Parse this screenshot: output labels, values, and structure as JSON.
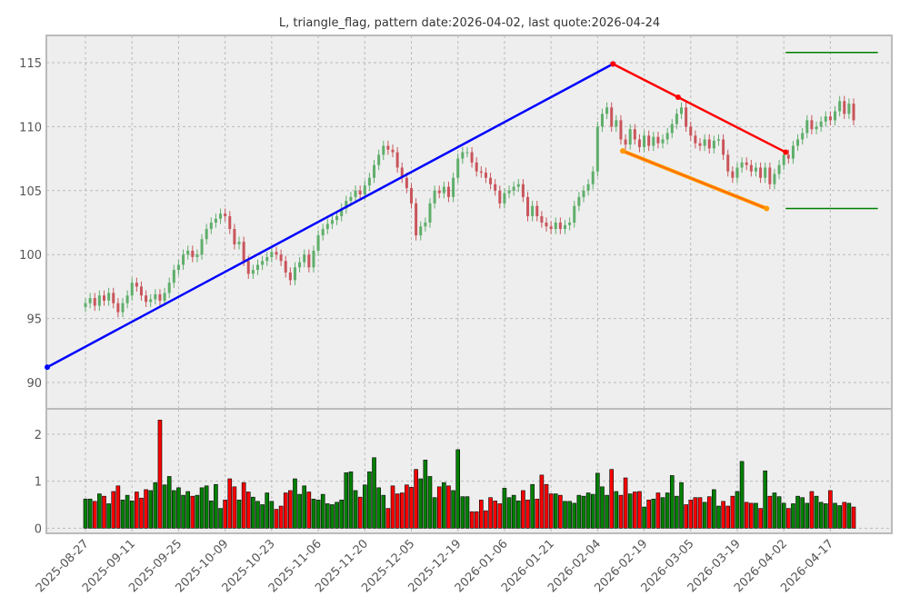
{
  "chart_data": {
    "type": "candlestick",
    "title": "L, triangle_flag, pattern date:2026-04-02, last quote:2026-04-24",
    "xlabel": "",
    "ylabel": "",
    "price_ylim": [
      87.94,
      117.13
    ],
    "volume_ylim": [
      -0.11,
      2.54
    ],
    "x_index_range": [
      -8.4,
      173.2
    ],
    "price_yticks": [
      90,
      95,
      100,
      105,
      110,
      115
    ],
    "volume_yticks": [
      0,
      1,
      2
    ],
    "xtick_labels": [
      "2025-08-27",
      "2025-09-11",
      "2025-09-25",
      "2025-10-09",
      "2025-10-23",
      "2025-11-06",
      "2025-11-20",
      "2025-12-05",
      "2025-12-19",
      "2026-01-06",
      "2026-01-21",
      "2026-02-04",
      "2026-02-19",
      "2026-03-05",
      "2026-03-19",
      "2026-04-02",
      "2026-04-17"
    ],
    "xtick_index_step": 10,
    "grid": true,
    "close": [
      96.2,
      96.6,
      96.0,
      96.8,
      96.4,
      97.0,
      96.2,
      95.5,
      96.2,
      96.8,
      97.8,
      97.5,
      96.8,
      96.3,
      96.5,
      96.9,
      96.4,
      97.0,
      97.8,
      98.8,
      99.2,
      100.0,
      100.3,
      99.8,
      100.0,
      101.2,
      102.0,
      102.5,
      102.8,
      103.2,
      103.0,
      102.0,
      100.8,
      101.0,
      99.5,
      98.5,
      98.8,
      99.2,
      99.5,
      99.8,
      100.2,
      100.0,
      99.5,
      98.6,
      98.0,
      99.0,
      99.4,
      100.0,
      99.0,
      100.3,
      101.5,
      102.0,
      102.4,
      102.7,
      103.0,
      103.6,
      104.2,
      104.5,
      105.0,
      104.7,
      105.4,
      106.0,
      107.0,
      107.8,
      108.5,
      108.2,
      108.0,
      106.8,
      106.0,
      105.2,
      104.0,
      101.5,
      102.2,
      102.5,
      104.0,
      105.0,
      104.8,
      105.3,
      104.5,
      106.0,
      107.5,
      108.0,
      108.0,
      107.2,
      106.5,
      106.4,
      106.0,
      105.5,
      105.0,
      104.0,
      104.8,
      105.0,
      105.3,
      105.5,
      104.5,
      103.0,
      103.8,
      103.0,
      102.5,
      102.2,
      102.0,
      102.5,
      102.0,
      102.3,
      102.5,
      103.8,
      104.5,
      105.0,
      105.5,
      106.5,
      110.0,
      111.0,
      111.5,
      110.0,
      110.5,
      109.0,
      108.6,
      109.8,
      109.0,
      108.4,
      109.3,
      108.5,
      109.2,
      108.7,
      109.0,
      109.5,
      110.2,
      111.0,
      111.5,
      110.0,
      109.3,
      108.7,
      108.5,
      109.0,
      108.3,
      108.9,
      109.0,
      107.8,
      106.5,
      106.0,
      106.8,
      107.2,
      107.0,
      106.5,
      106.8,
      106.0,
      106.8,
      105.5,
      106.3,
      107.0,
      107.8,
      107.5,
      108.5,
      109.0,
      109.5,
      110.5,
      109.8,
      110.0,
      110.4,
      110.8,
      110.5,
      111.2,
      112.0,
      111.0,
      111.8,
      110.5
    ],
    "volume": [
      0.62,
      0.62,
      0.57,
      0.73,
      0.68,
      0.52,
      0.78,
      0.9,
      0.6,
      0.7,
      0.58,
      0.77,
      0.64,
      0.82,
      0.8,
      0.97,
      2.3,
      0.92,
      1.1,
      0.8,
      0.86,
      0.7,
      0.78,
      0.68,
      0.7,
      0.86,
      0.9,
      0.58,
      0.93,
      0.42,
      0.6,
      1.05,
      0.88,
      0.6,
      0.97,
      0.77,
      0.66,
      0.57,
      0.5,
      0.75,
      0.57,
      0.4,
      0.47,
      0.75,
      0.8,
      1.05,
      0.72,
      0.9,
      0.77,
      0.62,
      0.6,
      0.72,
      0.52,
      0.5,
      0.55,
      0.6,
      1.18,
      1.2,
      0.8,
      0.66,
      0.92,
      1.2,
      1.5,
      0.86,
      0.7,
      0.42,
      0.9,
      0.73,
      0.75,
      0.92,
      0.87,
      1.25,
      1.05,
      1.45,
      1.1,
      0.65,
      0.88,
      0.97,
      0.9,
      0.8,
      1.67,
      0.67,
      0.67,
      0.35,
      0.35,
      0.6,
      0.37,
      0.65,
      0.58,
      0.52,
      0.85,
      0.65,
      0.7,
      0.58,
      0.8,
      0.6,
      0.93,
      0.62,
      1.13,
      0.93,
      0.73,
      0.73,
      0.7,
      0.57,
      0.57,
      0.53,
      0.7,
      0.68,
      0.75,
      0.72,
      1.17,
      0.88,
      0.7,
      1.25,
      0.78,
      0.7,
      1.07,
      0.73,
      0.77,
      0.78,
      0.45,
      0.6,
      0.62,
      0.75,
      0.65,
      0.75,
      1.12,
      0.68,
      0.97,
      0.5,
      0.6,
      0.65,
      0.65,
      0.55,
      0.67,
      0.82,
      0.47,
      0.57,
      0.47,
      0.68,
      0.78,
      1.42,
      0.55,
      0.53,
      0.53,
      0.42,
      1.22,
      0.68,
      0.75,
      0.67,
      0.53,
      0.42,
      0.52,
      0.68,
      0.65,
      0.53,
      0.78,
      0.68,
      0.55,
      0.52,
      0.8,
      0.53,
      0.48,
      0.55,
      0.53,
      0.45
    ],
    "overlays": [
      {
        "name": "uptrend-line",
        "color": "#0000ff",
        "points": [
          [
            -8.2,
            91.2
          ],
          [
            113.3,
            114.9
          ]
        ]
      },
      {
        "name": "upper-flag-line",
        "color": "#ff0000",
        "points": [
          [
            113.3,
            114.9
          ],
          [
            127.3,
            112.3
          ],
          [
            150.4,
            108.0
          ]
        ]
      },
      {
        "name": "lower-flag-line",
        "color": "#ff6600",
        "points": [
          [
            115.4,
            108.1
          ],
          [
            146.3,
            103.6
          ]
        ]
      },
      {
        "name": "target-high-line",
        "color": "#008000",
        "points": [
          [
            150.4,
            115.8
          ],
          [
            170.2,
            115.8
          ]
        ]
      },
      {
        "name": "target-low-line",
        "color": "#008000",
        "points": [
          [
            150.4,
            103.6
          ],
          [
            170.2,
            103.6
          ]
        ]
      }
    ],
    "colors": {
      "up": "#5fae6b",
      "down": "#c9555b",
      "vol_up": "#008000",
      "vol_down": "#ff0000",
      "background": "#eeeeee"
    }
  }
}
